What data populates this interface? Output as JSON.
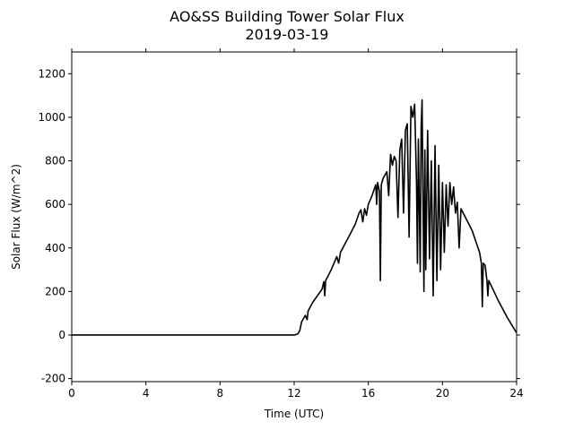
{
  "chart_data": {
    "type": "line",
    "title": "AO&SS Building Tower Solar Flux",
    "subtitle": "2019-03-19",
    "x_label": "Time (UTC)",
    "y_label": "Solar Flux (W/m^2)",
    "xlim": [
      0,
      24
    ],
    "xticks": [
      0,
      4,
      8,
      12,
      16,
      20,
      24
    ],
    "ylim": [
      -214,
      1300
    ],
    "yticks": [
      -200,
      0,
      200,
      400,
      600,
      800,
      1000,
      1200
    ],
    "color": "#000000",
    "x": [
      0,
      12,
      12.2,
      12.3,
      12.4,
      12.6,
      12.7,
      12.75,
      13,
      13.5,
      13.6,
      13.65,
      13.7,
      14,
      14.2,
      14.3,
      14.4,
      14.5,
      15,
      15.3,
      15.5,
      15.6,
      15.7,
      15.8,
      15.9,
      16,
      16.2,
      16.4,
      16.45,
      16.5,
      16.6,
      16.65,
      16.7,
      16.8,
      17,
      17.1,
      17.2,
      17.3,
      17.4,
      17.5,
      17.6,
      17.7,
      17.8,
      17.9,
      18,
      18.1,
      18.2,
      18.3,
      18.4,
      18.5,
      18.6,
      18.65,
      18.7,
      18.8,
      18.85,
      18.9,
      19,
      19.05,
      19.1,
      19.2,
      19.3,
      19.4,
      19.5,
      19.6,
      19.7,
      19.8,
      19.9,
      20,
      20.1,
      20.2,
      20.3,
      20.4,
      20.5,
      20.6,
      20.7,
      20.8,
      20.9,
      21,
      21.3,
      21.6,
      22,
      22.1,
      22.15,
      22.2,
      22.3,
      22.4,
      22.45,
      22.5,
      23,
      23.5,
      24
    ],
    "values": [
      0,
      0,
      5,
      20,
      60,
      90,
      70,
      110,
      150,
      210,
      245,
      180,
      250,
      300,
      340,
      360,
      330,
      380,
      460,
      510,
      560,
      575,
      520,
      580,
      550,
      600,
      640,
      690,
      600,
      700,
      660,
      250,
      690,
      720,
      750,
      640,
      830,
      780,
      820,
      800,
      540,
      850,
      900,
      560,
      940,
      970,
      450,
      1050,
      1000,
      1060,
      700,
      330,
      900,
      290,
      950,
      1080,
      200,
      850,
      300,
      940,
      350,
      800,
      180,
      870,
      250,
      780,
      300,
      700,
      380,
      690,
      500,
      700,
      600,
      680,
      560,
      610,
      400,
      580,
      530,
      480,
      380,
      330,
      130,
      330,
      320,
      250,
      180,
      250,
      160,
      80,
      10
    ]
  }
}
